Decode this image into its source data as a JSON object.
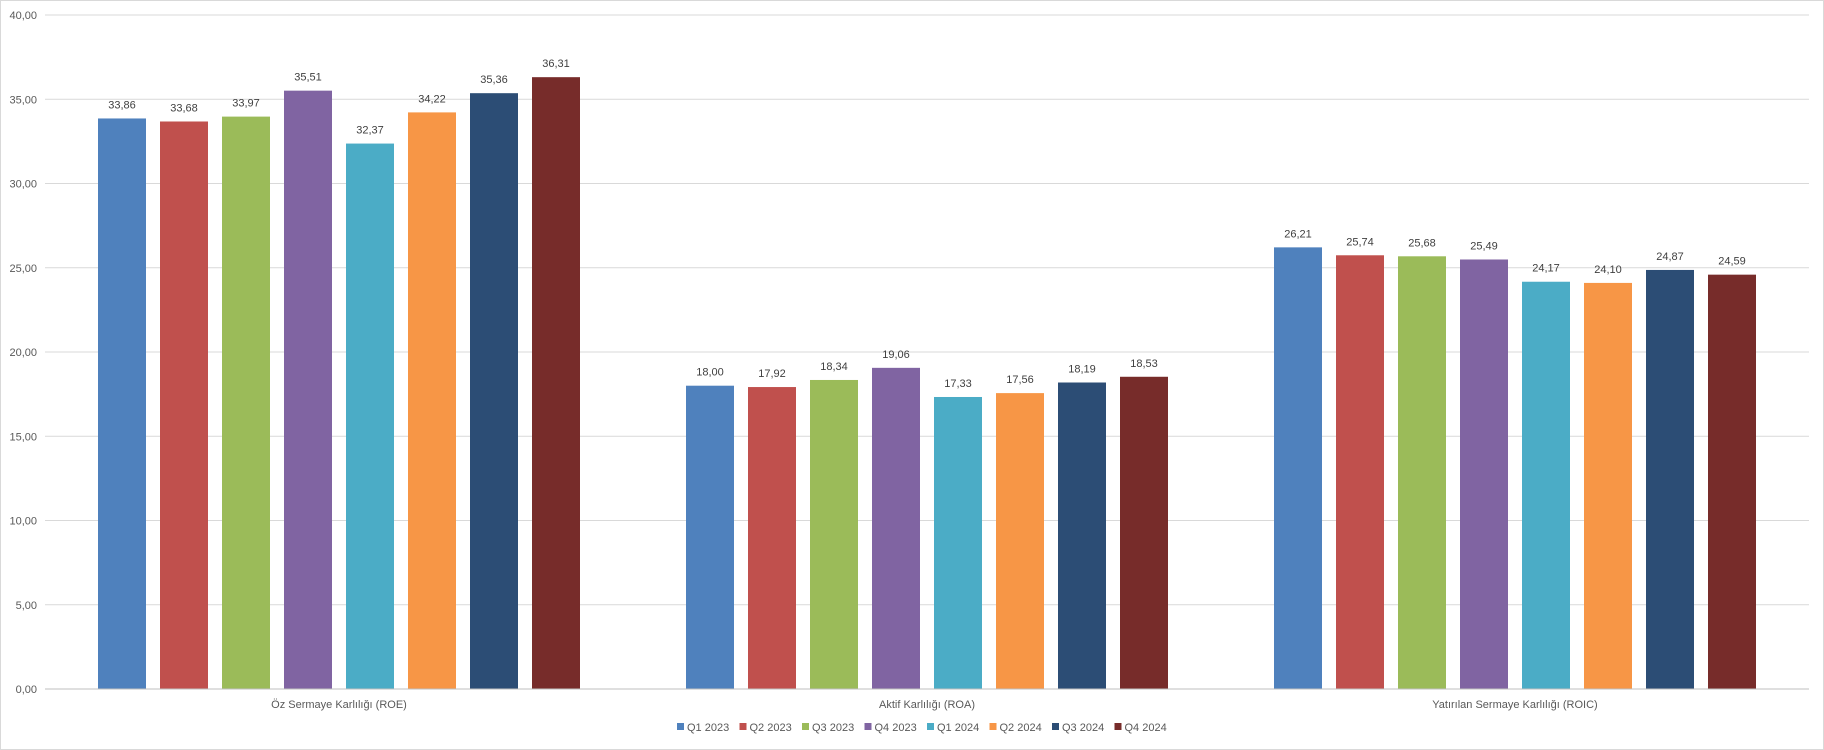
{
  "chart_data": {
    "type": "bar",
    "title": "",
    "xlabel": "",
    "ylabel": "",
    "ylim": [
      0,
      40
    ],
    "ytick_step": 5,
    "y_tick_labels": [
      "0,00",
      "5,00",
      "10,00",
      "15,00",
      "20,00",
      "25,00",
      "30,00",
      "35,00",
      "40,00"
    ],
    "grid": true,
    "legend_position": "bottom",
    "categories": [
      "Öz Sermaye Karlılığı (ROE)",
      "Aktif Karlılığı (ROA)",
      "Yatırılan Sermaye Karlılığı (ROIC)"
    ],
    "series": [
      {
        "name": "Q1 2023",
        "color": "#4F81BD",
        "values": [
          33.86,
          18.0,
          26.21
        ],
        "labels": [
          "33,86",
          "18,00",
          "26,21"
        ]
      },
      {
        "name": "Q2 2023",
        "color": "#C0504D",
        "values": [
          33.68,
          17.92,
          25.74
        ],
        "labels": [
          "33,68",
          "17,92",
          "25,74"
        ]
      },
      {
        "name": "Q3 2023",
        "color": "#9BBB59",
        "values": [
          33.97,
          18.34,
          25.68
        ],
        "labels": [
          "33,97",
          "18,34",
          "25,68"
        ]
      },
      {
        "name": "Q4 2023",
        "color": "#8064A2",
        "values": [
          35.51,
          19.06,
          25.49
        ],
        "labels": [
          "35,51",
          "19,06",
          "25,49"
        ]
      },
      {
        "name": "Q1 2024",
        "color": "#4BACC6",
        "values": [
          32.37,
          17.33,
          24.17
        ],
        "labels": [
          "32,37",
          "17,33",
          "24,17"
        ]
      },
      {
        "name": "Q2 2024",
        "color": "#F79646",
        "values": [
          34.22,
          17.56,
          24.1
        ],
        "labels": [
          "34,22",
          "17,56",
          "24,10"
        ]
      },
      {
        "name": "Q3 2024",
        "color": "#2C4D75",
        "values": [
          35.36,
          18.19,
          24.87
        ],
        "labels": [
          "35,36",
          "18,19",
          "24,87"
        ]
      },
      {
        "name": "Q4 2024",
        "color": "#772C2A",
        "values": [
          36.31,
          18.53,
          24.59
        ],
        "labels": [
          "36,31",
          "18,53",
          "24,59"
        ]
      }
    ]
  }
}
